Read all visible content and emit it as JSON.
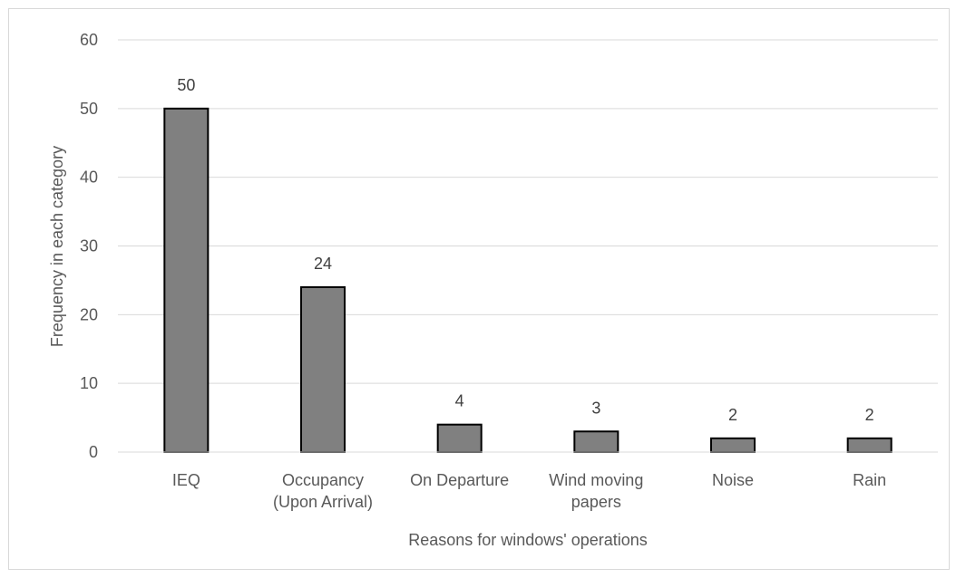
{
  "chart_data": {
    "type": "bar",
    "categories": [
      [
        "IEQ"
      ],
      [
        "Occupancy",
        "(Upon Arrival)"
      ],
      [
        "On Departure"
      ],
      [
        "Wind moving",
        "papers"
      ],
      [
        "Noise"
      ],
      [
        "Rain"
      ]
    ],
    "values": [
      50,
      24,
      4,
      3,
      2,
      2
    ],
    "data_labels": [
      "50",
      "24",
      "4",
      "3",
      "2",
      "2"
    ],
    "xlabel": "Reasons for windows' operations",
    "ylabel": "Frequency in each category",
    "ylim": [
      0,
      60
    ],
    "yticks": [
      0,
      10,
      20,
      30,
      40,
      50,
      60
    ],
    "grid": true,
    "legend": "none",
    "colors": {
      "bar_fill": "#808080",
      "bar_stroke": "#000000",
      "gridline": "#d9d9d9",
      "axis_line": "#d9d9d9",
      "tick_text": "#595959",
      "label_text": "#404040"
    }
  }
}
